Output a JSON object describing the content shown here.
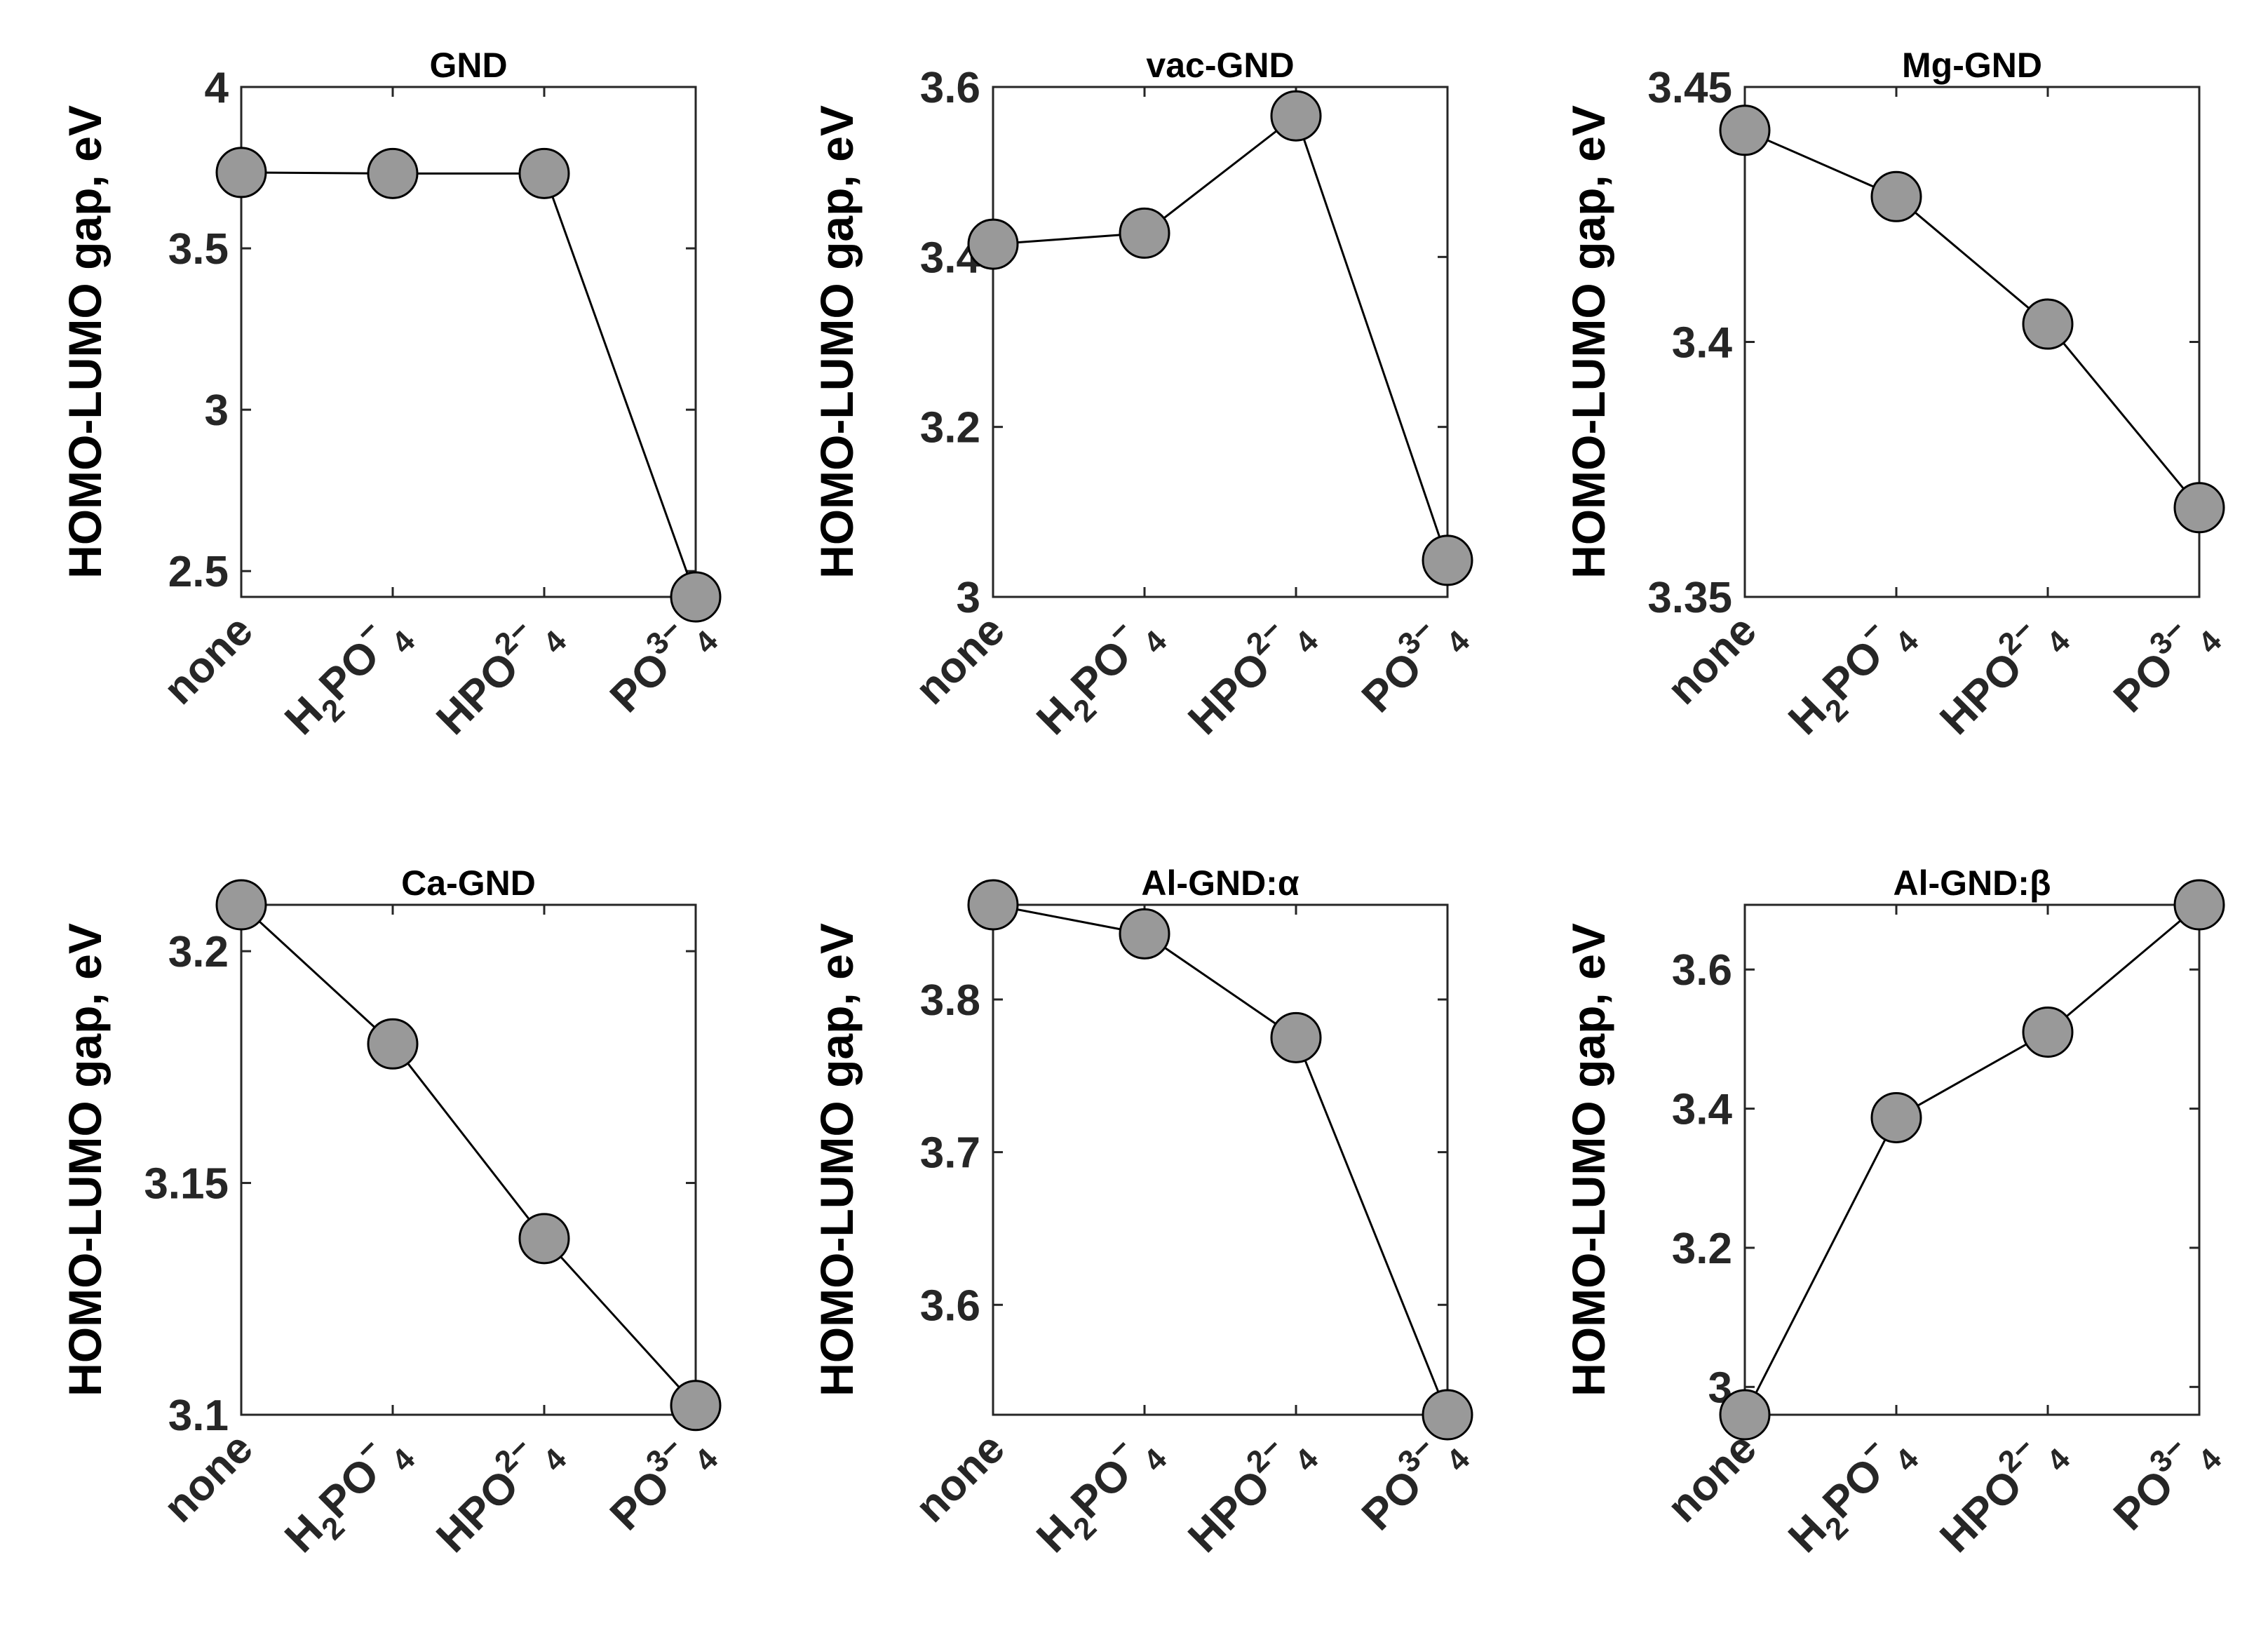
{
  "chart_data": [
    {
      "type": "line",
      "title": "GND",
      "ylabel": "HOMO-LUMO gap, eV",
      "categories": [
        {
          "label": "none"
        },
        {
          "base": "H",
          "sub1": "2",
          "mid": "PO",
          "sup": "−",
          "sub2": "4"
        },
        {
          "base": "HPO",
          "sup": "2−",
          "sub2": "4"
        },
        {
          "base": "PO",
          "sup": "3−",
          "sub2": "4"
        }
      ],
      "values": [
        3.735,
        3.732,
        3.732,
        2.42
      ],
      "ylim": [
        2.42,
        4.0
      ],
      "yticks": [
        2.5,
        3,
        3.5,
        4
      ],
      "ytick_labels": [
        "2.5",
        "3",
        "3.5",
        "4"
      ]
    },
    {
      "type": "line",
      "title": "vac-GND",
      "ylabel": "HOMO-LUMO gap, eV",
      "categories": [
        {
          "label": "none"
        },
        {
          "base": "H",
          "sub1": "2",
          "mid": "PO",
          "sup": "−",
          "sub2": "4"
        },
        {
          "base": "HPO",
          "sup": "2−",
          "sub2": "4"
        },
        {
          "base": "PO",
          "sup": "3−",
          "sub2": "4"
        }
      ],
      "values": [
        3.415,
        3.428,
        3.566,
        3.043
      ],
      "ylim": [
        3.0,
        3.6
      ],
      "yticks": [
        3,
        3.2,
        3.4,
        3.6
      ],
      "ytick_labels": [
        "3",
        "3.2",
        "3.4",
        "3.6"
      ]
    },
    {
      "type": "line",
      "title": "Mg-GND",
      "ylabel": "HOMO-LUMO gap, eV",
      "categories": [
        {
          "label": "none"
        },
        {
          "base": "H",
          "sub1": "2",
          "mid": "PO",
          "sup": "−",
          "sub2": "4"
        },
        {
          "base": "HPO",
          "sup": "2−",
          "sub2": "4"
        },
        {
          "base": "PO",
          "sup": "3−",
          "sub2": "4"
        }
      ],
      "values": [
        3.4415,
        3.4285,
        3.4035,
        3.3675
      ],
      "ylim": [
        3.35,
        3.45
      ],
      "yticks": [
        3.35,
        3.4,
        3.45
      ],
      "ytick_labels": [
        "3.35",
        "3.4",
        "3.45"
      ]
    },
    {
      "type": "line",
      "title": "Ca-GND",
      "ylabel": "HOMO-LUMO gap, eV",
      "categories": [
        {
          "label": "none"
        },
        {
          "base": "H",
          "sub1": "2",
          "mid": "PO",
          "sup": "−",
          "sub2": "4"
        },
        {
          "base": "HPO",
          "sup": "2−",
          "sub2": "4"
        },
        {
          "base": "PO",
          "sup": "3−",
          "sub2": "4"
        }
      ],
      "values": [
        3.21,
        3.18,
        3.138,
        3.102
      ],
      "ylim": [
        3.1,
        3.21
      ],
      "yticks": [
        3.1,
        3.15,
        3.2
      ],
      "ytick_labels": [
        "3.1",
        "3.15",
        "3.2"
      ]
    },
    {
      "type": "line",
      "title": "Al-GND:α",
      "ylabel": "HOMO-LUMO gap, eV",
      "categories": [
        {
          "label": "none"
        },
        {
          "base": "H",
          "sub1": "2",
          "mid": "PO",
          "sup": "−",
          "sub2": "4"
        },
        {
          "base": "HPO",
          "sup": "2−",
          "sub2": "4"
        },
        {
          "base": "PO",
          "sup": "3−",
          "sub2": "4"
        }
      ],
      "values": [
        3.862,
        3.843,
        3.775,
        3.528
      ],
      "ylim": [
        3.528,
        3.862
      ],
      "yticks": [
        3.6,
        3.7,
        3.8
      ],
      "ytick_labels": [
        "3.6",
        "3.7",
        "3.8"
      ]
    },
    {
      "type": "line",
      "title": "Al-GND:β",
      "ylabel": "HOMO-LUMO gap, eV",
      "categories": [
        {
          "label": "none"
        },
        {
          "base": "H",
          "sub1": "2",
          "mid": "PO",
          "sup": "−",
          "sub2": "4"
        },
        {
          "base": "HPO",
          "sup": "2−",
          "sub2": "4"
        },
        {
          "base": "PO",
          "sup": "3−",
          "sub2": "4"
        }
      ],
      "values": [
        2.96,
        3.387,
        3.51,
        3.693
      ],
      "ylim": [
        2.96,
        3.693
      ],
      "yticks": [
        3,
        3.2,
        3.4,
        3.6
      ],
      "ytick_labels": [
        "3",
        "3.2",
        "3.4",
        "3.6"
      ]
    }
  ],
  "colors": {
    "marker_fill": "#999999",
    "line": "#000000",
    "axis": "#262626"
  }
}
